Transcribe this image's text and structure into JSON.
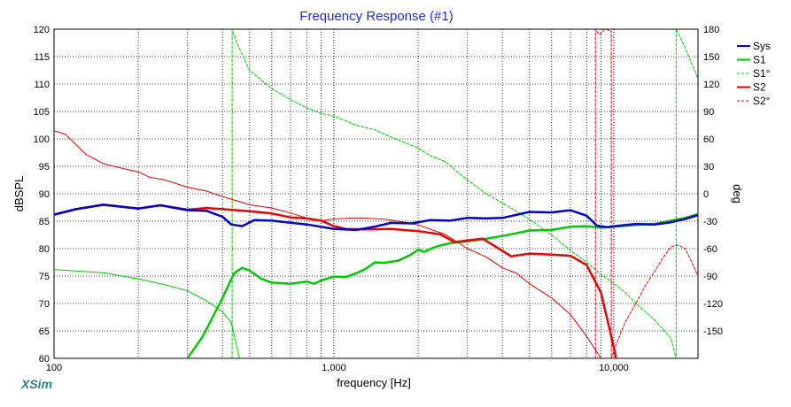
{
  "chart_data": {
    "type": "line",
    "title": "Frequency Response (#1)",
    "xlabel": "frequency [Hz]",
    "ylabel": "dBSPL",
    "ylabel_right": "deg",
    "x_scale": "log",
    "xlim": [
      100,
      20000
    ],
    "ylim": [
      60,
      120
    ],
    "ylim_right": [
      -180,
      180
    ],
    "x_ticks": [
      100,
      1000,
      10000
    ],
    "x_tick_labels": [
      "100",
      "1,000",
      "10,000"
    ],
    "y_ticks": [
      60,
      65,
      70,
      75,
      80,
      85,
      90,
      95,
      100,
      105,
      110,
      115,
      120
    ],
    "y_tick_labels": [
      "60",
      "65",
      "70",
      "75",
      "80",
      "85",
      "90",
      "95",
      "100",
      "105",
      "110",
      "115",
      "120"
    ],
    "y_right_ticks": [
      -150,
      -120,
      -90,
      -60,
      -30,
      0,
      30,
      60,
      90,
      120,
      150,
      180
    ],
    "y_right_tick_labels": [
      "-150",
      "-120",
      "-90",
      "-60",
      "-30",
      "0",
      "30",
      "60",
      "90",
      "120",
      "150",
      "180"
    ],
    "grid": true,
    "legend_position": "top-right",
    "watermark": "XSim",
    "series": [
      {
        "name": "Sys",
        "axis": "left",
        "color": "#0000c8",
        "style": "solid",
        "width": 2.5,
        "points": [
          [
            100,
            86.2
          ],
          [
            120,
            87.2
          ],
          [
            150,
            88
          ],
          [
            200,
            87.3
          ],
          [
            240,
            87.9
          ],
          [
            300,
            87
          ],
          [
            350,
            86.9
          ],
          [
            400,
            85.8
          ],
          [
            430,
            84.4
          ],
          [
            470,
            84.1
          ],
          [
            520,
            85.2
          ],
          [
            600,
            85.1
          ],
          [
            800,
            84.4
          ],
          [
            1000,
            83.6
          ],
          [
            1200,
            83.4
          ],
          [
            1400,
            84
          ],
          [
            1600,
            84.7
          ],
          [
            1900,
            84.6
          ],
          [
            2200,
            85.2
          ],
          [
            2600,
            85.1
          ],
          [
            3000,
            85.6
          ],
          [
            3500,
            85.5
          ],
          [
            4000,
            85.6
          ],
          [
            5000,
            86.7
          ],
          [
            6000,
            86.6
          ],
          [
            7000,
            87
          ],
          [
            8000,
            86
          ],
          [
            8700,
            84.2
          ],
          [
            9500,
            83.9
          ],
          [
            10500,
            84.2
          ],
          [
            12000,
            84.5
          ],
          [
            14000,
            84.4
          ],
          [
            16000,
            84.8
          ],
          [
            18000,
            85.4
          ],
          [
            20000,
            86.1
          ]
        ]
      },
      {
        "name": "S1",
        "axis": "left",
        "color": "#00c800",
        "style": "solid",
        "width": 2.5,
        "points": [
          [
            300,
            60
          ],
          [
            340,
            64
          ],
          [
            400,
            71
          ],
          [
            440,
            75.5
          ],
          [
            470,
            76.5
          ],
          [
            500,
            76
          ],
          [
            550,
            74.5
          ],
          [
            600,
            73.8
          ],
          [
            700,
            73.6
          ],
          [
            800,
            74
          ],
          [
            850,
            73.6
          ],
          [
            900,
            74.2
          ],
          [
            1000,
            74.9
          ],
          [
            1100,
            74.8
          ],
          [
            1200,
            75.5
          ],
          [
            1300,
            76.3
          ],
          [
            1400,
            77.5
          ],
          [
            1500,
            77.4
          ],
          [
            1700,
            77.8
          ],
          [
            1900,
            79
          ],
          [
            2000,
            79.8
          ],
          [
            2100,
            79.4
          ],
          [
            2300,
            80.3
          ],
          [
            2600,
            81
          ],
          [
            3000,
            81.3
          ],
          [
            3500,
            81.8
          ],
          [
            4000,
            82.3
          ],
          [
            4500,
            82.8
          ],
          [
            5000,
            83.3
          ],
          [
            6000,
            83.4
          ],
          [
            7000,
            84
          ],
          [
            8000,
            84.1
          ],
          [
            9000,
            83.8
          ],
          [
            10000,
            84
          ],
          [
            12000,
            84.3
          ],
          [
            14000,
            84.5
          ],
          [
            16000,
            85.1
          ],
          [
            18000,
            85.6
          ],
          [
            20000,
            86.3
          ]
        ]
      },
      {
        "name": "S1°",
        "axis": "right",
        "color": "#00c800",
        "style": "dashed",
        "width": 1,
        "points": [
          [
            433,
            -180
          ],
          [
            433,
            180
          ],
          [
            450,
            165
          ],
          [
            500,
            135
          ],
          [
            600,
            115
          ],
          [
            700,
            103
          ],
          [
            800,
            94
          ],
          [
            900,
            88
          ],
          [
            1000,
            85
          ],
          [
            1100,
            80
          ],
          [
            1200,
            75
          ],
          [
            1400,
            70
          ],
          [
            1600,
            62
          ],
          [
            2000,
            50
          ],
          [
            2200,
            42
          ],
          [
            2500,
            35
          ],
          [
            3000,
            15
          ],
          [
            3500,
            0
          ],
          [
            4000,
            -10
          ],
          [
            5000,
            -28
          ],
          [
            6000,
            -45
          ],
          [
            7000,
            -62
          ],
          [
            8000,
            -75
          ],
          [
            9000,
            -88
          ],
          [
            10000,
            -98
          ],
          [
            11000,
            -108
          ],
          [
            12000,
            -120
          ],
          [
            14000,
            -138
          ],
          [
            16000,
            -158
          ],
          [
            16700,
            -180
          ],
          [
            16700,
            180
          ],
          [
            18000,
            160
          ],
          [
            20000,
            126
          ]
        ]
      },
      {
        "name": "S2",
        "axis": "left",
        "color": "#e60000",
        "style": "solid",
        "width": 2.5,
        "points": [
          [
            100,
            86.2
          ],
          [
            120,
            87.2
          ],
          [
            150,
            88
          ],
          [
            200,
            87.3
          ],
          [
            240,
            87.9
          ],
          [
            300,
            87.1
          ],
          [
            350,
            87.4
          ],
          [
            400,
            87.2
          ],
          [
            500,
            86.8
          ],
          [
            600,
            86.4
          ],
          [
            700,
            85.7
          ],
          [
            800,
            85.5
          ],
          [
            900,
            85.1
          ],
          [
            1000,
            84.1
          ],
          [
            1100,
            83.6
          ],
          [
            1300,
            83.5
          ],
          [
            1600,
            83.6
          ],
          [
            2000,
            83.2
          ],
          [
            2400,
            82.6
          ],
          [
            2700,
            81.2
          ],
          [
            3000,
            81.5
          ],
          [
            3400,
            81.8
          ],
          [
            3800,
            80.3
          ],
          [
            4300,
            78.6
          ],
          [
            5000,
            79.1
          ],
          [
            6000,
            78.9
          ],
          [
            7000,
            78.7
          ],
          [
            8000,
            77
          ],
          [
            9000,
            72
          ],
          [
            9700,
            65
          ],
          [
            10200,
            60
          ]
        ]
      },
      {
        "name": "S2°",
        "axis": "right",
        "color": "#e60000",
        "style": "dashed",
        "width": 1,
        "points": [
          [
            8600,
            -180
          ],
          [
            8600,
            180
          ],
          [
            8900,
            174
          ],
          [
            9300,
            180
          ],
          [
            9800,
            178
          ],
          [
            9800,
            -180
          ],
          [
            10200,
            -165
          ],
          [
            11000,
            -140
          ],
          [
            12000,
            -120
          ],
          [
            13000,
            -100
          ],
          [
            14000,
            -85
          ],
          [
            15000,
            -70
          ],
          [
            16000,
            -58
          ],
          [
            17000,
            -56
          ],
          [
            18000,
            -60
          ],
          [
            19000,
            -75
          ],
          [
            20000,
            -90
          ]
        ]
      },
      {
        "name": "",
        "axis": "left",
        "color": "#e60000",
        "style": "solid",
        "width": 1,
        "points": [
          [
            100,
            101.5
          ],
          [
            110,
            100.8
          ],
          [
            130,
            97.2
          ],
          [
            150,
            95.5
          ],
          [
            180,
            94.5
          ],
          [
            200,
            94
          ],
          [
            220,
            93
          ],
          [
            250,
            92.5
          ],
          [
            300,
            91.2
          ],
          [
            350,
            90.5
          ],
          [
            400,
            89.5
          ],
          [
            500,
            88
          ],
          [
            600,
            87.4
          ],
          [
            700,
            86.5
          ],
          [
            800,
            85.6
          ],
          [
            900,
            85.1
          ],
          [
            1000,
            85.4
          ],
          [
            1200,
            85.6
          ],
          [
            1500,
            85.4
          ],
          [
            1800,
            84.8
          ],
          [
            2000,
            84.3
          ],
          [
            2500,
            82.6
          ],
          [
            3000,
            80
          ],
          [
            3500,
            78.5
          ],
          [
            4000,
            76.5
          ],
          [
            4500,
            75.5
          ],
          [
            5000,
            73.6
          ],
          [
            6000,
            71
          ],
          [
            7000,
            68
          ],
          [
            8000,
            64
          ],
          [
            9000,
            60
          ]
        ]
      },
      {
        "name": "",
        "axis": "left",
        "color": "#00c800",
        "style": "solid",
        "width": 1,
        "points": [
          [
            100,
            76.2
          ],
          [
            150,
            75.6
          ],
          [
            200,
            74.5
          ],
          [
            250,
            73.4
          ],
          [
            300,
            72.3
          ],
          [
            350,
            70.5
          ],
          [
            400,
            68.5
          ],
          [
            430,
            66.5
          ],
          [
            460,
            60
          ]
        ]
      }
    ]
  }
}
